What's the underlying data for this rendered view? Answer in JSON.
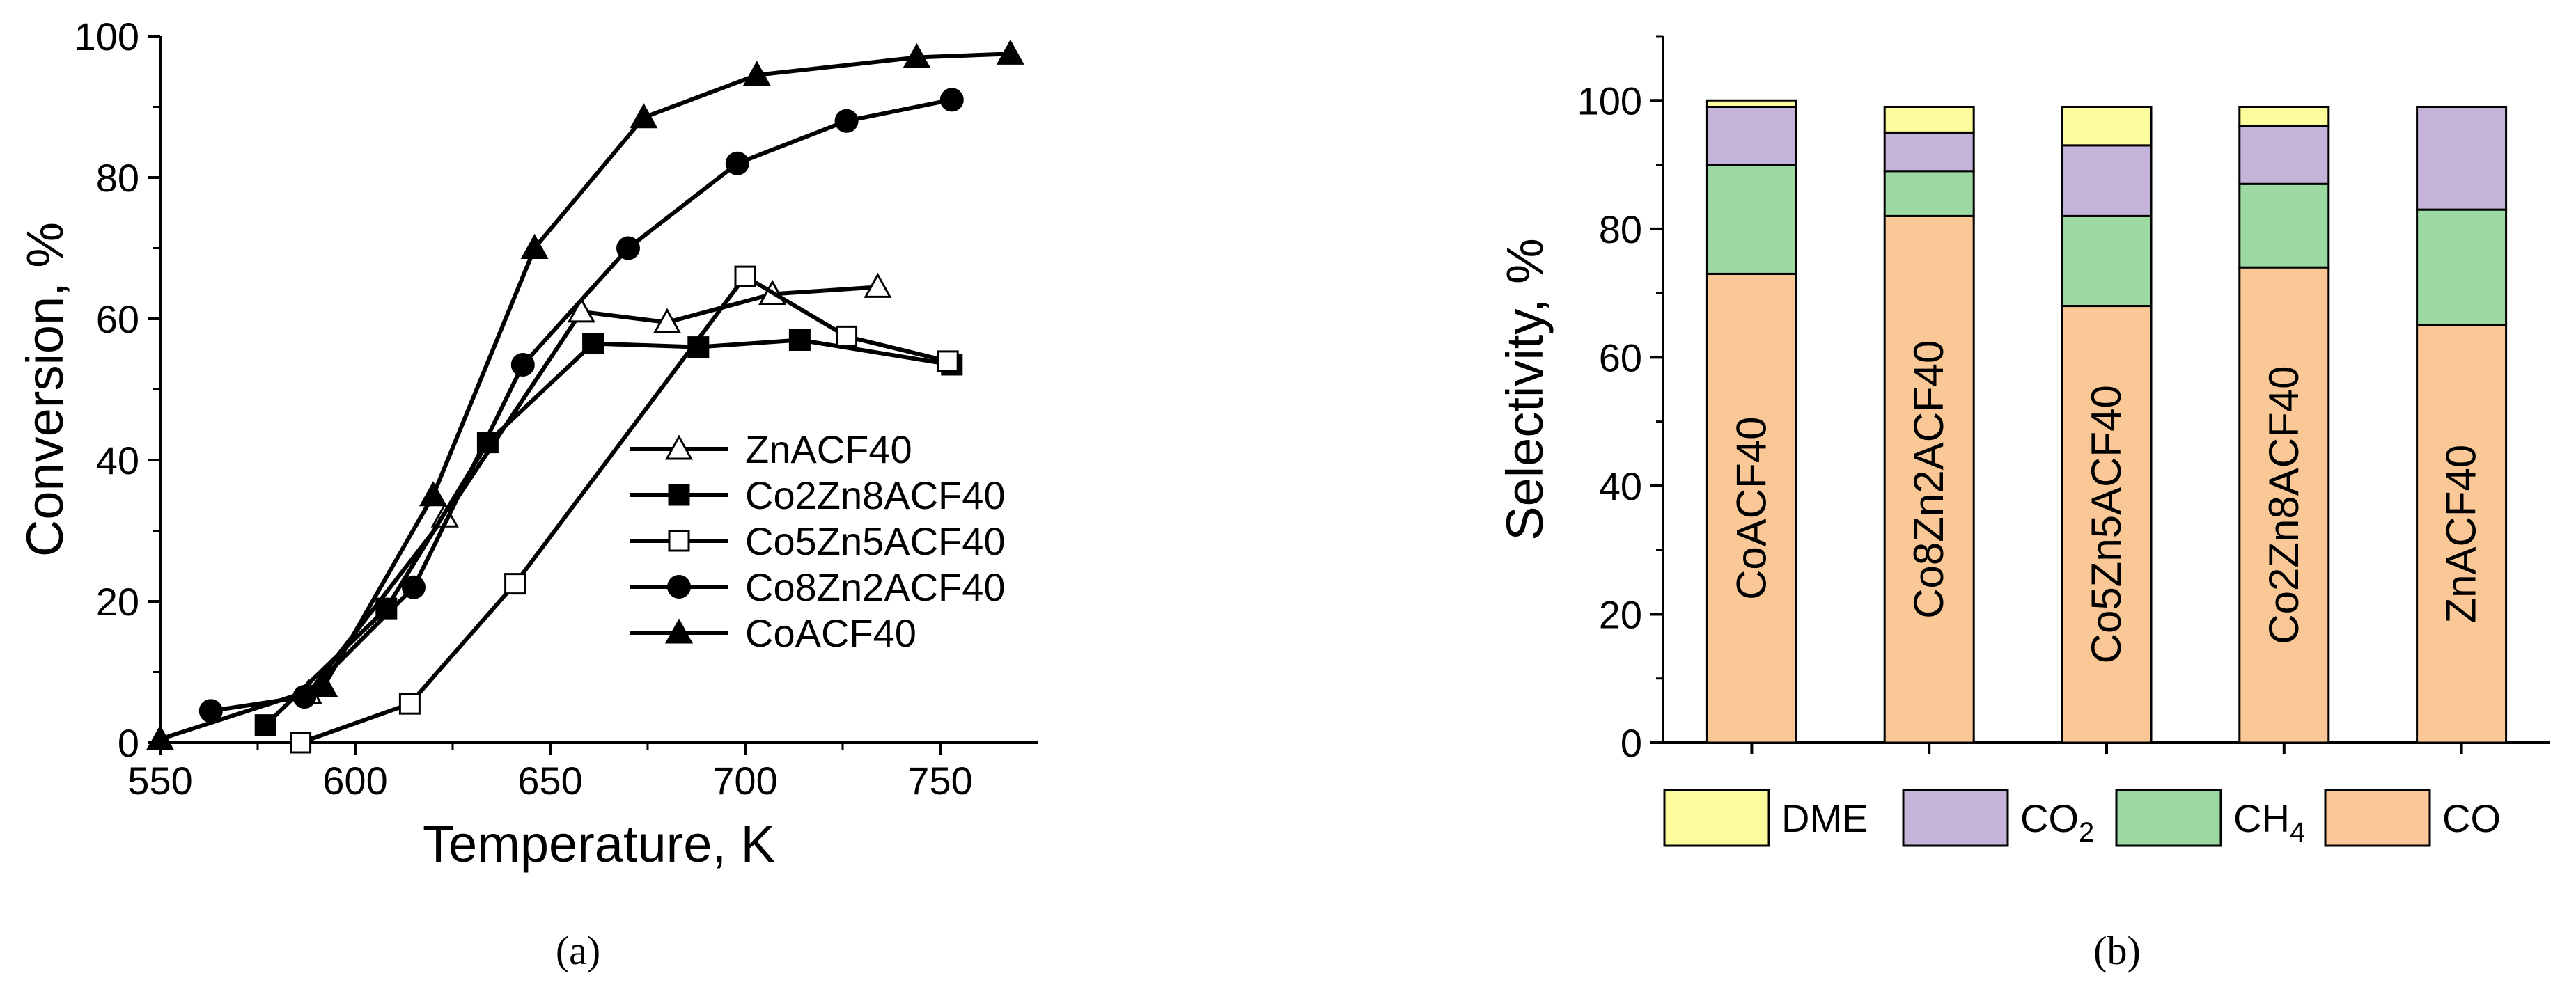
{
  "chart_data": [
    {
      "type": "line",
      "panel": "a",
      "caption": "(a)",
      "xlabel": "Temperature, K",
      "ylabel": "Conversion, %",
      "xlim": [
        550,
        775
      ],
      "ylim": [
        0,
        100
      ],
      "xticks": [
        550,
        600,
        650,
        700,
        750
      ],
      "yticks": [
        0,
        20,
        40,
        60,
        80,
        100
      ],
      "legend_position": "center-right",
      "series": [
        {
          "name": "ZnACF40",
          "marker": "triangle-open",
          "x": [
            588,
            623,
            658,
            680,
            707,
            734
          ],
          "y": [
            7,
            32,
            61,
            59.5,
            63.5,
            64.5
          ]
        },
        {
          "name": "Co2Zn8ACF40",
          "marker": "square-filled",
          "x": [
            577,
            608,
            634,
            661,
            688,
            714,
            753
          ],
          "y": [
            2.5,
            19,
            42.5,
            56.5,
            56,
            57,
            53.5
          ]
        },
        {
          "name": "Co5Zn5ACF40",
          "marker": "square-open",
          "x": [
            586,
            614,
            641,
            700,
            726,
            752
          ],
          "y": [
            0,
            5.5,
            22.5,
            66,
            57.5,
            54
          ]
        },
        {
          "name": "Co8Zn2ACF40",
          "marker": "circle-filled",
          "x": [
            563,
            587,
            615,
            643,
            670,
            698,
            726,
            753
          ],
          "y": [
            4.5,
            6.5,
            22,
            53.5,
            70,
            82,
            88,
            91
          ]
        },
        {
          "name": "CoACF40",
          "marker": "triangle-filled",
          "x": [
            550,
            592,
            620,
            646,
            674,
            703,
            744,
            768
          ],
          "y": [
            0.5,
            8,
            35,
            70,
            88.5,
            94.5,
            97,
            97.5
          ]
        }
      ]
    },
    {
      "type": "bar",
      "stacked": true,
      "panel": "b",
      "caption": "(b)",
      "xlabel": "",
      "ylabel": "Selectivity, %",
      "ylim": [
        0,
        110
      ],
      "yticks": [
        0,
        20,
        40,
        60,
        80,
        100
      ],
      "legend_position": "bottom",
      "categories": [
        "CoACF40",
        "Co8Zn2ACF40",
        "Co5Zn5ACF40",
        "Co2Zn8ACF40",
        "ZnACF40"
      ],
      "series": [
        {
          "name": "CO",
          "color": "#f9c896",
          "values": [
            73,
            82,
            68,
            74,
            65
          ]
        },
        {
          "name": "CH4",
          "color": "#9cd9a3",
          "values": [
            17,
            7,
            14,
            13,
            18
          ]
        },
        {
          "name": "CO2",
          "color": "#c5b4da",
          "values": [
            9,
            6,
            11,
            9,
            16
          ]
        },
        {
          "name": "DME",
          "color": "#fdfc9c",
          "values": [
            1,
            4,
            6,
            3,
            0
          ]
        }
      ],
      "legend": [
        {
          "main": "DME",
          "sub": ""
        },
        {
          "main": "CO",
          "sub": "2"
        },
        {
          "main": "CH",
          "sub": "4"
        },
        {
          "main": "CO",
          "sub": ""
        }
      ]
    }
  ]
}
